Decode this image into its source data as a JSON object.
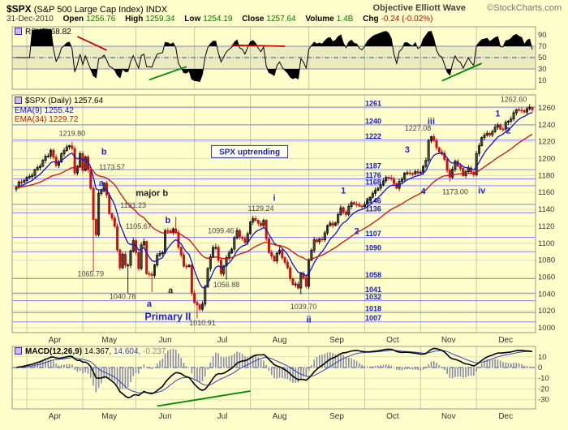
{
  "header": {
    "symbol": "$SPX",
    "title": "(S&P 500 Large Cap Index)",
    "exchange": "INDX",
    "style_label": "Objective Elliott Wave",
    "credit": "©StockCharts.com",
    "date": "31-Dec-2010"
  },
  "quote": {
    "open": {
      "label": "Open",
      "value": "1256.76"
    },
    "high": {
      "label": "High",
      "value": "1259.34"
    },
    "low": {
      "label": "Low",
      "value": "1254.19"
    },
    "close": {
      "label": "Close",
      "value": "1257.64"
    },
    "volume": {
      "label": "Volume",
      "value": "1.4B"
    },
    "chg": {
      "label": "Chg",
      "value": "-0.24 (-0.02%)"
    }
  },
  "legends": {
    "rsi": "RSI(5) 68.82",
    "price": "$SPX (Daily) 1257.64",
    "ema9": "EMA(9) 1255.42",
    "ema34": "EMA(34) 1229.72",
    "macd": "MACD(12,26,9)",
    "macd_val": "14.367,",
    "macd_sig": "14.604,",
    "macd_hist": "-0.237"
  },
  "colors": {
    "background": "#FFFFCC",
    "sr_line": "#7070ff",
    "sr_label": "#1515c8",
    "candle_up": "#000000",
    "candle_down": "#cc1111",
    "ema9": "#1111cc",
    "ema34": "#cc1111",
    "rsi_line": "#000000",
    "macd_line": "#000000",
    "macd_signal": "#3344bb",
    "macd_hist": "#8888aa",
    "trend_red": "#cc0000",
    "trend_green": "#008800"
  },
  "chart_data": {
    "type": "candlestick",
    "symbol": "$SPX",
    "timeframe": "daily",
    "title": "$SPX (Daily) 1257.64",
    "x_axis": {
      "months": [
        "Apr",
        "May",
        "Jun",
        "Jul",
        "Aug",
        "Sep",
        "Oct",
        "Nov",
        "Dec"
      ],
      "month_start_day": [
        4,
        25,
        45,
        67,
        88,
        110,
        131,
        152,
        173
      ],
      "total_days": 195
    },
    "price_axis": {
      "min": 1000,
      "max": 1260,
      "step": 20
    },
    "sr_levels": [
      1261,
      1240,
      1222,
      1187,
      1176,
      1168,
      1146,
      1136,
      1107,
      1090,
      1058,
      1041,
      1032,
      1018,
      1007
    ],
    "close_pivots": [
      [
        0,
        1166
      ],
      [
        2,
        1172
      ],
      [
        4,
        1178
      ],
      [
        9,
        1191
      ],
      [
        13,
        1210
      ],
      [
        15,
        1192
      ],
      [
        19,
        1214
      ],
      [
        21,
        1212
      ],
      [
        22,
        1183
      ],
      [
        23,
        1191
      ],
      [
        24,
        1206
      ],
      [
        25,
        1186
      ],
      [
        26,
        1202
      ],
      [
        28,
        1165
      ],
      [
        29,
        1128
      ],
      [
        30,
        1110
      ],
      [
        31,
        1159
      ],
      [
        33,
        1171
      ],
      [
        34,
        1157
      ],
      [
        35,
        1135
      ],
      [
        37,
        1120
      ],
      [
        38,
        1092
      ],
      [
        39,
        1071
      ],
      [
        40,
        1087
      ],
      [
        41,
        1074
      ],
      [
        42,
        1074
      ],
      [
        44,
        1103
      ],
      [
        45,
        1089
      ],
      [
        46,
        1070
      ],
      [
        47,
        1098
      ],
      [
        48,
        1102
      ],
      [
        49,
        1064
      ],
      [
        51,
        1062
      ],
      [
        53,
        1086
      ],
      [
        55,
        1089
      ],
      [
        56,
        1115
      ],
      [
        59,
        1117
      ],
      [
        60,
        1113
      ],
      [
        61,
        1095
      ],
      [
        63,
        1073
      ],
      [
        65,
        1074
      ],
      [
        66,
        1041
      ],
      [
        67,
        1030
      ],
      [
        68,
        1027
      ],
      [
        69,
        1022
      ],
      [
        70,
        1028
      ],
      [
        72,
        1070
      ],
      [
        74,
        1095
      ],
      [
        75,
        1095
      ],
      [
        77,
        1064
      ],
      [
        79,
        1083
      ],
      [
        81,
        1093
      ],
      [
        83,
        1115
      ],
      [
        86,
        1101
      ],
      [
        88,
        1125
      ],
      [
        90,
        1127
      ],
      [
        92,
        1121
      ],
      [
        93,
        1127
      ],
      [
        95,
        1089
      ],
      [
        97,
        1079
      ],
      [
        99,
        1092
      ],
      [
        102,
        1071
      ],
      [
        104,
        1051
      ],
      [
        106,
        1047
      ],
      [
        107,
        1064
      ],
      [
        109,
        1049
      ],
      [
        110,
        1080
      ],
      [
        112,
        1104
      ],
      [
        115,
        1104
      ],
      [
        117,
        1121
      ],
      [
        120,
        1124
      ],
      [
        122,
        1142
      ],
      [
        124,
        1134
      ],
      [
        126,
        1148
      ],
      [
        129,
        1144
      ],
      [
        131,
        1146
      ],
      [
        134,
        1159
      ],
      [
        136,
        1165
      ],
      [
        139,
        1178
      ],
      [
        141,
        1176
      ],
      [
        143,
        1165
      ],
      [
        146,
        1183
      ],
      [
        149,
        1182
      ],
      [
        151,
        1183
      ],
      [
        152,
        1184
      ],
      [
        154,
        1198
      ],
      [
        155,
        1221
      ],
      [
        156,
        1226
      ],
      [
        158,
        1213
      ],
      [
        161,
        1199
      ],
      [
        163,
        1178
      ],
      [
        165,
        1197
      ],
      [
        168,
        1180
      ],
      [
        170,
        1189
      ],
      [
        172,
        1181
      ],
      [
        173,
        1206
      ],
      [
        175,
        1225
      ],
      [
        178,
        1228
      ],
      [
        181,
        1240
      ],
      [
        183,
        1235
      ],
      [
        184,
        1243
      ],
      [
        186,
        1247
      ],
      [
        188,
        1258
      ],
      [
        190,
        1257
      ],
      [
        192,
        1259
      ],
      [
        194,
        1257.64
      ]
    ],
    "bar_extremes": [
      {
        "d": 21,
        "high": 1219.8
      },
      {
        "d": 29,
        "low": 1065.79
      },
      {
        "d": 34,
        "high": 1173.57
      },
      {
        "d": 42,
        "low": 1040.78
      },
      {
        "d": 48,
        "high": 1105.67
      },
      {
        "d": 51,
        "low": 1042.17
      },
      {
        "d": 60,
        "high": 1131.23
      },
      {
        "d": 68,
        "low": 1010.91
      },
      {
        "d": 75,
        "high": 1099.46
      },
      {
        "d": 79,
        "low": 1056.88
      },
      {
        "d": 93,
        "high": 1129.24
      },
      {
        "d": 107,
        "low": 1039.7
      },
      {
        "d": 156,
        "high": 1227.08
      },
      {
        "d": 163,
        "low": 1173.0
      },
      {
        "d": 194,
        "high": 1259.34,
        "low": 1254.19
      }
    ],
    "overlays": [
      {
        "type": "ema",
        "period": 9,
        "last": 1255.42
      },
      {
        "type": "ema",
        "period": 34,
        "last": 1229.72
      }
    ],
    "annotations": [
      {
        "text": "1219.80",
        "d": 21,
        "p": 1227,
        "style": "price"
      },
      {
        "text": "b",
        "d": 33,
        "p": 1205,
        "style": "wave"
      },
      {
        "text": "1173.57",
        "d": 36,
        "p": 1187,
        "style": "price"
      },
      {
        "text": "a",
        "d": 32,
        "p": 1168,
        "style": "wave"
      },
      {
        "text": "1065.79",
        "d": 28,
        "p": 1061,
        "style": "price"
      },
      {
        "text": "1040.78",
        "d": 40,
        "p": 1034,
        "style": "price"
      },
      {
        "text": "a",
        "d": 50,
        "p": 1025,
        "style": "wave"
      },
      {
        "text": "major b",
        "d": 51,
        "p": 1156,
        "style": "wave-dark"
      },
      {
        "text": "1131.23",
        "d": 44,
        "p": 1142,
        "style": "price"
      },
      {
        "text": "1105.67",
        "d": 46,
        "p": 1117,
        "style": "price"
      },
      {
        "text": "b",
        "d": 57,
        "p": 1124,
        "style": "wave"
      },
      {
        "text": "a",
        "d": 58,
        "p": 1041,
        "style": "wave-dark"
      },
      {
        "text": "Primary II",
        "d": 57,
        "p": 1009,
        "style": "primary"
      },
      {
        "text": "1010.91",
        "d": 70,
        "p": 1003,
        "style": "price"
      },
      {
        "text": "1056.88",
        "d": 79,
        "p": 1048,
        "style": "price"
      },
      {
        "text": "1099.46",
        "d": 77,
        "p": 1112,
        "style": "price"
      },
      {
        "text": "i",
        "d": 97,
        "p": 1150,
        "style": "wave"
      },
      {
        "text": "1129.24",
        "d": 92,
        "p": 1138,
        "style": "price"
      },
      {
        "text": "ii",
        "d": 110,
        "p": 1006,
        "style": "wave"
      },
      {
        "text": "1039.70",
        "d": 108,
        "p": 1022,
        "style": "price"
      },
      {
        "text": "1",
        "d": 123,
        "p": 1159,
        "style": "wave"
      },
      {
        "text": "2",
        "d": 128,
        "p": 1111,
        "style": "wave"
      },
      {
        "text": "3",
        "d": 147,
        "p": 1207,
        "style": "wave"
      },
      {
        "text": "iii",
        "d": 156,
        "p": 1241,
        "style": "wave"
      },
      {
        "text": "1227.08",
        "d": 151,
        "p": 1233,
        "style": "price"
      },
      {
        "text": "4",
        "d": 153,
        "p": 1158,
        "style": "wave"
      },
      {
        "text": "1173.00",
        "d": 165,
        "p": 1158,
        "style": "price"
      },
      {
        "text": "iv",
        "d": 175,
        "p": 1159,
        "style": "wave"
      },
      {
        "text": "1",
        "d": 181,
        "p": 1250,
        "style": "wave"
      },
      {
        "text": "2",
        "d": 185,
        "p": 1230,
        "style": "wave"
      },
      {
        "text": "1262.60",
        "d": 187,
        "p": 1267,
        "style": "price"
      }
    ],
    "callout": {
      "text": "SPX uptrending",
      "d": 74,
      "p": 1204
    },
    "rsi": {
      "period": 5,
      "last": 68.82,
      "axis": [
        90,
        70,
        50,
        30,
        10
      ],
      "overbought": 70,
      "mid": 50,
      "oversold": 30,
      "trendlines": [
        {
          "color": "#cc0000",
          "a": [
            23,
            87
          ],
          "b": [
            34,
            63
          ]
        },
        {
          "color": "#cc0000",
          "a": [
            81,
            72
          ],
          "b": [
            101,
            70
          ]
        },
        {
          "color": "#008800",
          "a": [
            50,
            11
          ],
          "b": [
            64,
            34
          ]
        },
        {
          "color": "#008800",
          "a": [
            160,
            9
          ],
          "b": [
            175,
            40
          ]
        }
      ]
    },
    "macd": {
      "fast": 12,
      "slow": 26,
      "signal": 9,
      "last": [
        14.367,
        14.604,
        -0.237
      ],
      "axis": [
        10,
        0,
        -10,
        -20,
        -30
      ],
      "trendlines": [
        {
          "color": "#008800",
          "a": [
            53,
            -36
          ],
          "b": [
            88,
            -22
          ]
        }
      ]
    }
  }
}
